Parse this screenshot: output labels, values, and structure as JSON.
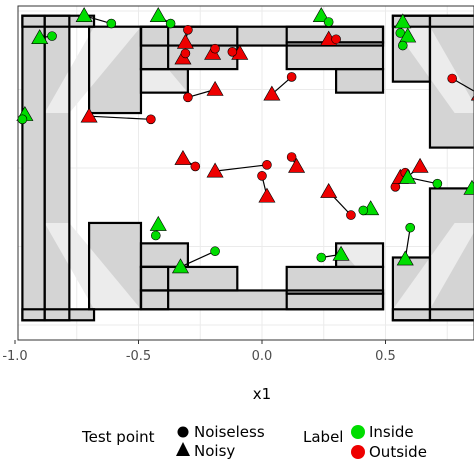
{
  "chart_data": {
    "type": "scatter",
    "xlabel": "x1",
    "xlim": [
      -1.0,
      0.88
    ],
    "ylim": [
      -1.0,
      1.0
    ],
    "x_ticks": [
      -1.0,
      -0.5,
      0.0,
      0.5
    ],
    "x_tick_labels": [
      "-1.0",
      "-0.5",
      "0.0",
      "0.5"
    ],
    "grid": true,
    "legend_position": "bottom",
    "colors": {
      "inside": "#00dd00",
      "outside": "#ee0000",
      "bg_region": "#d4d4d4",
      "gap_region": "#ececec"
    },
    "legend": {
      "shape_title": "Test point",
      "shape_items": [
        {
          "label": "Noiseless",
          "marker": "circle"
        },
        {
          "label": "Noisy",
          "marker": "triangle"
        }
      ],
      "color_title": "Label",
      "color_items": [
        {
          "label": "Inside",
          "color": "#00dd00"
        },
        {
          "label": "Outside",
          "color": "#ee0000"
        }
      ]
    },
    "regions": [
      [
        -0.97,
        0.9,
        -0.68,
        0.97
      ],
      [
        -0.97,
        -0.97,
        -0.68,
        -0.9
      ],
      [
        0.53,
        0.9,
        0.88,
        0.97
      ],
      [
        0.53,
        -0.97,
        0.88,
        -0.9
      ],
      [
        -0.97,
        -0.97,
        -0.88,
        0.97
      ],
      [
        -0.88,
        -0.97,
        -0.78,
        0.97
      ],
      [
        0.53,
        0.55,
        0.68,
        0.97
      ],
      [
        0.53,
        -0.97,
        0.68,
        -0.57
      ],
      [
        0.68,
        0.13,
        0.88,
        0.97
      ],
      [
        0.68,
        -0.97,
        0.88,
        -0.13
      ],
      [
        -0.7,
        0.35,
        -0.49,
        0.9
      ],
      [
        -0.7,
        -0.9,
        -0.49,
        -0.35
      ],
      [
        -0.49,
        0.63,
        -0.38,
        0.9
      ],
      [
        -0.49,
        -0.9,
        -0.38,
        -0.63
      ],
      [
        -0.49,
        0.48,
        -0.3,
        0.63
      ],
      [
        -0.49,
        -0.63,
        -0.3,
        -0.48
      ],
      [
        -0.49,
        -0.78,
        -0.1,
        -0.63
      ],
      [
        -0.49,
        0.63,
        -0.1,
        0.9
      ],
      [
        0.1,
        0.8,
        0.49,
        0.9
      ],
      [
        0.1,
        0.63,
        0.49,
        0.8
      ],
      [
        0.1,
        -0.9,
        0.49,
        -0.8
      ],
      [
        0.1,
        -0.8,
        0.49,
        -0.63
      ],
      [
        0.3,
        -0.63,
        0.49,
        -0.48
      ],
      [
        0.3,
        0.48,
        0.49,
        0.63
      ],
      [
        -0.49,
        -0.9,
        0.49,
        -0.78
      ],
      [
        -0.49,
        0.78,
        0.49,
        0.9
      ]
    ],
    "points": [
      {
        "x1": -0.9,
        "y": 0.83,
        "x2": -0.85,
        "y2": 0.84,
        "label": "Inside"
      },
      {
        "x1": -0.72,
        "y": 0.97,
        "x2": -0.61,
        "y2": 0.92,
        "label": "Inside"
      },
      {
        "x1": -0.42,
        "y": 0.97,
        "x2": -0.37,
        "y2": 0.92,
        "label": "Inside"
      },
      {
        "x1": 0.24,
        "y": 0.97,
        "x2": 0.27,
        "y2": 0.93,
        "label": "Inside"
      },
      {
        "x1": 0.57,
        "y": 0.93,
        "x2": 0.56,
        "y2": 0.86,
        "label": "Inside"
      },
      {
        "x1": 0.59,
        "y": 0.84,
        "x2": 0.57,
        "y2": 0.78,
        "label": "Inside"
      },
      {
        "x1": 0.27,
        "y": 0.82,
        "x2": 0.3,
        "y2": 0.82,
        "label": "Outside"
      },
      {
        "x1": -0.31,
        "y": 0.8,
        "x2": -0.3,
        "y2": 0.88,
        "label": "Outside"
      },
      {
        "x1": -0.2,
        "y": 0.73,
        "x2": -0.19,
        "y2": 0.76,
        "label": "Outside"
      },
      {
        "x1": -0.32,
        "y": 0.7,
        "x2": -0.31,
        "y2": 0.73,
        "label": "Outside"
      },
      {
        "x1": -0.09,
        "y": 0.73,
        "x2": -0.12,
        "y2": 0.74,
        "label": "Outside"
      },
      {
        "x1": -0.96,
        "y": 0.34,
        "x2": -0.97,
        "y2": 0.31,
        "label": "Inside"
      },
      {
        "x1": -0.7,
        "y": 0.33,
        "x2": -0.45,
        "y2": 0.31,
        "label": "Outside"
      },
      {
        "x1": -0.19,
        "y": 0.5,
        "x2": -0.3,
        "y2": 0.45,
        "label": "Outside"
      },
      {
        "x1": 0.04,
        "y": 0.47,
        "x2": 0.12,
        "y2": 0.58,
        "label": "Outside"
      },
      {
        "x1": 0.88,
        "y": 0.47,
        "x2": 0.77,
        "y2": 0.57,
        "label": "Outside"
      },
      {
        "x1": -0.32,
        "y": 0.06,
        "x2": -0.27,
        "y2": 0.01,
        "label": "Outside"
      },
      {
        "x1": -0.19,
        "y": -0.02,
        "x2": 0.02,
        "y2": 0.02,
        "label": "Outside"
      },
      {
        "x1": 0.14,
        "y": 0.01,
        "x2": 0.12,
        "y2": 0.07,
        "label": "Outside"
      },
      {
        "x1": 0.02,
        "y": -0.18,
        "x2": 0.0,
        "y2": -0.05,
        "label": "Outside"
      },
      {
        "x1": 0.64,
        "y": 0.01,
        "x2": 0.54,
        "y2": -0.12,
        "label": "Outside"
      },
      {
        "x1": 0.56,
        "y": -0.06,
        "x2": 0.58,
        "y2": -0.03,
        "label": "Outside"
      },
      {
        "x1": 0.59,
        "y": -0.06,
        "x2": 0.71,
        "y2": -0.1,
        "label": "Inside"
      },
      {
        "x1": 0.85,
        "y": -0.13,
        "x2": 0.88,
        "y2": -0.05,
        "label": "Inside"
      },
      {
        "x1": 0.27,
        "y": -0.15,
        "x2": 0.36,
        "y2": -0.3,
        "label": "Outside"
      },
      {
        "x1": 0.44,
        "y": -0.26,
        "x2": 0.41,
        "y2": -0.27,
        "label": "Inside"
      },
      {
        "x1": 0.58,
        "y": -0.58,
        "x2": 0.6,
        "y2": -0.38,
        "label": "Inside"
      },
      {
        "x1": 0.32,
        "y": -0.55,
        "x2": 0.24,
        "y2": -0.57,
        "label": "Inside"
      },
      {
        "x1": -0.42,
        "y": -0.36,
        "x2": -0.43,
        "y2": -0.43,
        "label": "Inside"
      },
      {
        "x1": -0.33,
        "y": -0.63,
        "x2": -0.19,
        "y2": -0.53,
        "label": "Inside"
      }
    ]
  }
}
